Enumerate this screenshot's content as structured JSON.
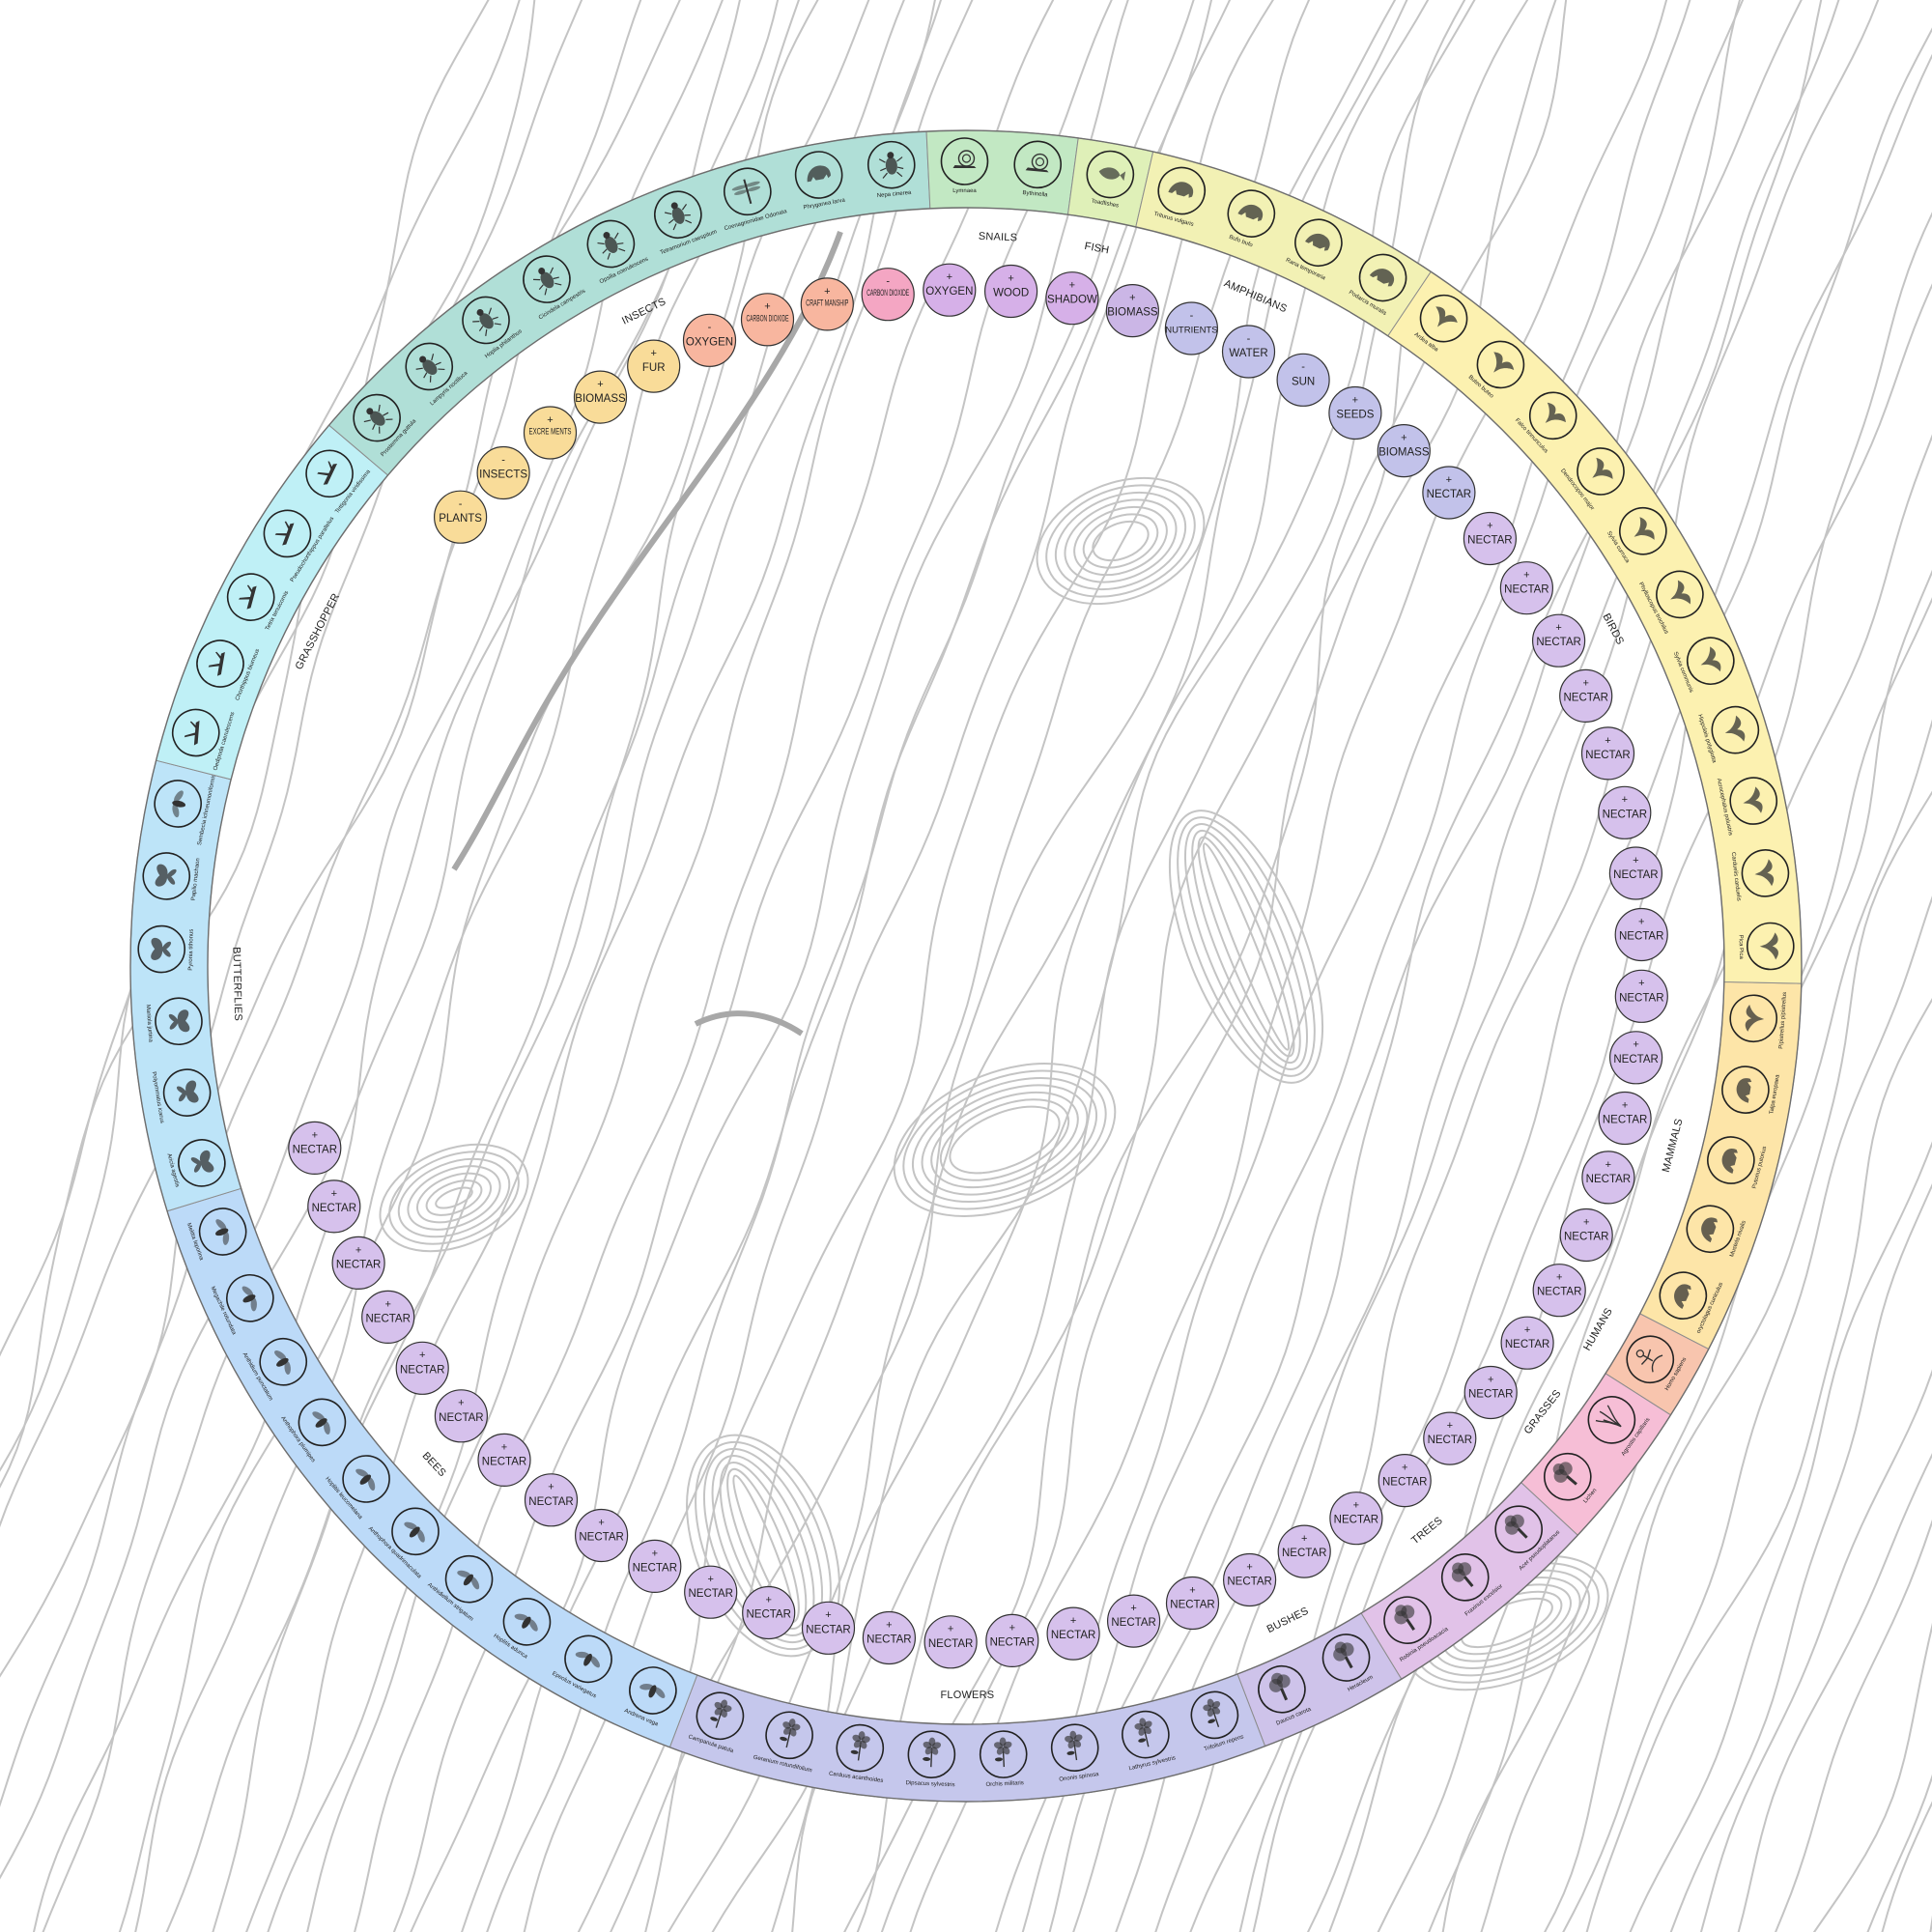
{
  "colors": {
    "mammals": "#fde5a8",
    "humans": "#f8c5ae",
    "grasses": "#f6bed6",
    "trees": "#e1c2e8",
    "bushes": "#cec3ea",
    "flowers": "#c5c7ec",
    "bees": "#bcdaf8",
    "butterflies": "#bde4f8",
    "grasshopper": "#bff0f6",
    "insects": "#b0dfd7",
    "snails": "#c2e8c3",
    "fish": "#dff0b8",
    "amphibians": "#f2f1b4",
    "birds": "#fcf1b0",
    "node_yellow": "#f9dc99",
    "node_salmon": "#f8b69f",
    "node_pink": "#f4a6c3",
    "node_violet": "#d6b0e8",
    "node_purple": "#cbb6e6",
    "node_blue": "#c2c2ea",
    "node_lilac": "#d6c1ec"
  },
  "groups": [
    {
      "label": "MAMMALS",
      "color": "mammals",
      "species": [
        {
          "name": "Pipistrellus pipistrellus",
          "icon": "bat-icon"
        },
        {
          "name": "Talpa europaea",
          "icon": "mole-icon"
        },
        {
          "name": "Putorius putorius",
          "icon": "polecat-icon"
        },
        {
          "name": "Mustela nivalis",
          "icon": "weasel-icon"
        },
        {
          "name": "oryctolagus cuniculus",
          "icon": "rabbit-icon"
        }
      ]
    },
    {
      "label": "HUMANS",
      "color": "humans",
      "species": [
        {
          "name": "Homo sapiens",
          "icon": "human-icon"
        }
      ]
    },
    {
      "label": "GRASSES",
      "color": "grasses",
      "species": [
        {
          "name": "Agrostis capillaris",
          "icon": "grass-icon"
        },
        {
          "name": "Lichen",
          "icon": "lichen-icon"
        }
      ]
    },
    {
      "label": "TREES",
      "color": "trees",
      "species": [
        {
          "name": "Acer pseudoplatanus",
          "icon": "maple-tree-icon"
        },
        {
          "name": "Fraxinus excelsior",
          "icon": "ash-tree-icon"
        },
        {
          "name": "Robinia pseudoacacia",
          "icon": "robinia-tree-icon"
        }
      ]
    },
    {
      "label": "BUSHES",
      "color": "bushes",
      "species": [
        {
          "name": "Heracleum",
          "icon": "heracleum-icon"
        },
        {
          "name": "Daucus carota",
          "icon": "carrot-bush-icon"
        }
      ]
    },
    {
      "label": "FLOWERS",
      "color": "flowers",
      "species": [
        {
          "name": "Trifolium repens",
          "icon": "clover-icon"
        },
        {
          "name": "Lathyrus sylvestris",
          "icon": "pea-flower-icon"
        },
        {
          "name": "Ononis spinosa",
          "icon": "ononis-flower-icon"
        },
        {
          "name": "Orchis militaris",
          "icon": "orchid-icon"
        },
        {
          "name": "Dipsacus sylvestris",
          "icon": "teasel-icon"
        },
        {
          "name": "Carduus acanthoides",
          "icon": "thistle-icon"
        },
        {
          "name": "Geranium rotundifolium",
          "icon": "geranium-icon"
        },
        {
          "name": "Campanula patula",
          "icon": "bellflower-icon"
        }
      ]
    },
    {
      "label": "BEES",
      "color": "bees",
      "species": [
        {
          "name": "Andrena vaga",
          "icon": "bee-icon"
        },
        {
          "name": "Epeolus variegatus",
          "icon": "bee-icon"
        },
        {
          "name": "Hoplitis adunca",
          "icon": "bee-icon"
        },
        {
          "name": "Anthidiellum strigatum",
          "icon": "bee-icon"
        },
        {
          "name": "Anthophora quadrimaculata",
          "icon": "bee-icon"
        },
        {
          "name": "Hoplitis leucomelana",
          "icon": "bee-icon"
        },
        {
          "name": "Anthophora plumipes",
          "icon": "bee-icon"
        },
        {
          "name": "Anthidium punctatum",
          "icon": "bee-icon"
        },
        {
          "name": "Megachile rotundata",
          "icon": "bee-icon"
        },
        {
          "name": "Melitta leporina",
          "icon": "bee-icon"
        }
      ]
    },
    {
      "label": "BUTTERFLIES",
      "color": "butterflies",
      "species": [
        {
          "name": "Aricia agestis",
          "icon": "butterfly-icon"
        },
        {
          "name": "Polyommatus icarus",
          "icon": "butterfly-icon"
        },
        {
          "name": "Maniola jurtina",
          "icon": "butterfly-icon"
        },
        {
          "name": "Pyronia tithonus",
          "icon": "butterfly-icon"
        },
        {
          "name": "Papilio machaon",
          "icon": "butterfly-icon"
        },
        {
          "name": "Sembecia ichneumoniformis",
          "icon": "moth-icon"
        }
      ]
    },
    {
      "label": "GRASSHOPPER",
      "color": "grasshopper",
      "species": [
        {
          "name": "Oedipoda caerulescens",
          "icon": "grasshopper-icon"
        },
        {
          "name": "Chorthippus biurneus",
          "icon": "grasshopper-icon"
        },
        {
          "name": "Tetrix tenuicornis",
          "icon": "grasshopper-icon"
        },
        {
          "name": "Pseudochorthippus parallelus",
          "icon": "grasshopper-icon"
        },
        {
          "name": "Tettigonia viridissima",
          "icon": "grasshopper-icon"
        }
      ]
    },
    {
      "label": "INSECTS",
      "color": "insects",
      "species": [
        {
          "name": "Prostemma guttula",
          "icon": "beetle-icon"
        },
        {
          "name": "Lampyris noctiluca",
          "icon": "firefly-icon"
        },
        {
          "name": "Hoplia philanthus",
          "icon": "beetle-icon"
        },
        {
          "name": "Cicindela campestris",
          "icon": "beetle-icon"
        },
        {
          "name": "Opsilia coerulescens",
          "icon": "beetle-icon"
        },
        {
          "name": "Tetramorium caespitum",
          "icon": "ant-icon"
        },
        {
          "name": "Coenagrionidae Odonata",
          "icon": "dragonfly-icon"
        },
        {
          "name": "Phryganea larva",
          "icon": "larva-icon"
        },
        {
          "name": "Nepa cinerea",
          "icon": "water-bug-icon"
        }
      ]
    },
    {
      "label": "SNAILS",
      "color": "snails",
      "species": [
        {
          "name": "Lymnaea",
          "icon": "snail-icon"
        },
        {
          "name": "Bythinella",
          "icon": "snail-icon"
        }
      ]
    },
    {
      "label": "FISH",
      "color": "fish",
      "species": [
        {
          "name": "Toadfishes",
          "icon": "fish-icon"
        }
      ]
    },
    {
      "label": "AMPHIBIANS",
      "color": "amphibians",
      "species": [
        {
          "name": "Triturus vulgaris",
          "icon": "newt-icon"
        },
        {
          "name": "Bufo bufo",
          "icon": "toad-icon"
        },
        {
          "name": "Rana temporaria",
          "icon": "frog-icon"
        },
        {
          "name": "Podarcis muralis",
          "icon": "lizard-icon"
        }
      ]
    },
    {
      "label": "BIRDS",
      "color": "birds",
      "species": [
        {
          "name": "Ardea alba",
          "icon": "heron-icon"
        },
        {
          "name": "Buteo buteo",
          "icon": "buzzard-icon"
        },
        {
          "name": "Falco tinnunculus",
          "icon": "falcon-icon"
        },
        {
          "name": "Dendrocopos major",
          "icon": "woodpecker-icon"
        },
        {
          "name": "Sylvia curruca",
          "icon": "warbler-icon"
        },
        {
          "name": "Phylloscopus trochilus",
          "icon": "warbler-icon"
        },
        {
          "name": "Sylvia communis",
          "icon": "warbler-icon"
        },
        {
          "name": "Hippolais polyglotta",
          "icon": "warbler-icon"
        },
        {
          "name": "Acrocephalus palustris",
          "icon": "warbler-icon"
        },
        {
          "name": "Carduelis carduelis",
          "icon": "goldfinch-icon"
        },
        {
          "name": "Pica Pica",
          "icon": "magpie-icon"
        }
      ]
    }
  ],
  "nodes": [
    {
      "sign": "-",
      "label": "PLANTS",
      "color": "node_yellow"
    },
    {
      "sign": "-",
      "label": "INSECTS",
      "color": "node_yellow"
    },
    {
      "sign": "+",
      "label": "EXCRE MENTS",
      "color": "node_yellow"
    },
    {
      "sign": "+",
      "label": "BIOMASS",
      "color": "node_yellow"
    },
    {
      "sign": "+",
      "label": "FUR",
      "color": "node_yellow"
    },
    {
      "sign": "-",
      "label": "OXYGEN",
      "color": "node_salmon"
    },
    {
      "sign": "+",
      "label": "CARBON DIOXIDE",
      "color": "node_salmon"
    },
    {
      "sign": "+",
      "label": "CRAFT MANSHIP",
      "color": "node_salmon"
    },
    {
      "sign": "-",
      "label": "CARBON DIOXIDE",
      "color": "node_pink"
    },
    {
      "sign": "+",
      "label": "OXYGEN",
      "color": "node_violet"
    },
    {
      "sign": "+",
      "label": "WOOD",
      "color": "node_violet"
    },
    {
      "sign": "+",
      "label": "SHADOW",
      "color": "node_violet"
    },
    {
      "sign": "+",
      "label": "BIOMASS",
      "color": "node_purple"
    },
    {
      "sign": "-",
      "label": "NUTRIENTS",
      "color": "node_blue"
    },
    {
      "sign": "-",
      "label": "WATER",
      "color": "node_blue"
    },
    {
      "sign": "-",
      "label": "SUN",
      "color": "node_blue"
    },
    {
      "sign": "+",
      "label": "SEEDS",
      "color": "node_blue"
    },
    {
      "sign": "+",
      "label": "BIOMASS",
      "color": "node_blue"
    },
    {
      "sign": "+",
      "label": "NECTAR",
      "color": "node_blue"
    },
    {
      "sign": "+",
      "label": "NECTAR",
      "color": "node_lilac"
    },
    {
      "sign": "+",
      "label": "NECTAR",
      "color": "node_lilac"
    },
    {
      "sign": "+",
      "label": "NECTAR",
      "color": "node_lilac"
    },
    {
      "sign": "+",
      "label": "NECTAR",
      "color": "node_lilac"
    },
    {
      "sign": "+",
      "label": "NECTAR",
      "color": "node_lilac"
    },
    {
      "sign": "+",
      "label": "NECTAR",
      "color": "node_lilac"
    },
    {
      "sign": "+",
      "label": "NECTAR",
      "color": "node_lilac"
    },
    {
      "sign": "+",
      "label": "NECTAR",
      "color": "node_lilac"
    },
    {
      "sign": "+",
      "label": "NECTAR",
      "color": "node_lilac"
    },
    {
      "sign": "+",
      "label": "NECTAR",
      "color": "node_lilac"
    },
    {
      "sign": "+",
      "label": "NECTAR",
      "color": "node_lilac"
    },
    {
      "sign": "+",
      "label": "NECTAR",
      "color": "node_lilac"
    },
    {
      "sign": "+",
      "label": "NECTAR",
      "color": "node_lilac"
    },
    {
      "sign": "+",
      "label": "NECTAR",
      "color": "node_lilac"
    },
    {
      "sign": "+",
      "label": "NECTAR",
      "color": "node_lilac"
    },
    {
      "sign": "+",
      "label": "NECTAR",
      "color": "node_lilac"
    },
    {
      "sign": "+",
      "label": "NECTAR",
      "color": "node_lilac"
    },
    {
      "sign": "+",
      "label": "NECTAR",
      "color": "node_lilac"
    },
    {
      "sign": "+",
      "label": "NECTAR",
      "color": "node_lilac"
    },
    {
      "sign": "+",
      "label": "NECTAR",
      "color": "node_lilac"
    },
    {
      "sign": "+",
      "label": "NECTAR",
      "color": "node_lilac"
    },
    {
      "sign": "+",
      "label": "NECTAR",
      "color": "node_lilac"
    },
    {
      "sign": "+",
      "label": "NECTAR",
      "color": "node_lilac"
    },
    {
      "sign": "+",
      "label": "NECTAR",
      "color": "node_lilac"
    },
    {
      "sign": "+",
      "label": "NECTAR",
      "color": "node_lilac"
    },
    {
      "sign": "+",
      "label": "NECTAR",
      "color": "node_lilac"
    },
    {
      "sign": "+",
      "label": "NECTAR",
      "color": "node_lilac"
    },
    {
      "sign": "+",
      "label": "NECTAR",
      "color": "node_lilac"
    },
    {
      "sign": "+",
      "label": "NECTAR",
      "color": "node_lilac"
    },
    {
      "sign": "+",
      "label": "NECTAR",
      "color": "node_lilac"
    },
    {
      "sign": "+",
      "label": "NECTAR",
      "color": "node_lilac"
    },
    {
      "sign": "+",
      "label": "NECTAR",
      "color": "node_lilac"
    },
    {
      "sign": "+",
      "label": "NECTAR",
      "color": "node_lilac"
    },
    {
      "sign": "+",
      "label": "NECTAR",
      "color": "node_lilac"
    },
    {
      "sign": "+",
      "label": "NECTAR",
      "color": "node_lilac"
    },
    {
      "sign": "+",
      "label": "NECTAR",
      "color": "node_lilac"
    },
    {
      "sign": "+",
      "label": "NECTAR",
      "color": "node_lilac"
    },
    {
      "sign": "+",
      "label": "NECTAR",
      "color": "node_lilac"
    },
    {
      "sign": "+",
      "label": "NECTAR",
      "color": "node_lilac"
    },
    {
      "sign": "+",
      "label": "NECTAR",
      "color": "node_lilac"
    }
  ]
}
